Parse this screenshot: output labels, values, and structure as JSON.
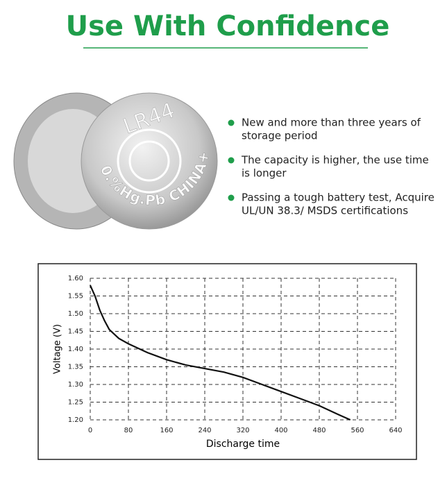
{
  "title": "Use With Confidence",
  "battery_text": {
    "model": "LR44",
    "marking": "0.%Hg.Pb CHINA+"
  },
  "bullets": [
    [
      "New and more than three years of",
      "storage period"
    ],
    [
      "The capacity is higher, the use time",
      "is longer"
    ],
    [
      "Passing a tough battery test, Acquire",
      "UL/UN 38.3/ MSDS certifications"
    ]
  ],
  "chart_data": {
    "type": "line",
    "x_label": "Discharge time",
    "y_label": "Voltage (V)",
    "x": [
      0,
      10,
      20,
      30,
      40,
      60,
      80,
      120,
      160,
      200,
      240,
      280,
      320,
      360,
      400,
      440,
      480,
      520,
      545
    ],
    "values": [
      1.58,
      1.55,
      1.51,
      1.48,
      1.455,
      1.43,
      1.415,
      1.39,
      1.37,
      1.355,
      1.345,
      1.335,
      1.32,
      1.3,
      1.28,
      1.26,
      1.24,
      1.215,
      1.2
    ],
    "color": "#111111",
    "xlim": [
      0,
      640
    ],
    "xticks": [
      0,
      80,
      160,
      240,
      320,
      400,
      480,
      560,
      640
    ],
    "ylim": [
      1.2,
      1.6
    ],
    "yticks": [
      {
        "value": 1.2,
        "label": "1.20"
      },
      1.25,
      {
        "value": 1.3,
        "label": "1.30"
      },
      1.35,
      {
        "value": 1.4,
        "label": "1.40"
      },
      1.45,
      {
        "value": 1.5,
        "label": "1.50"
      },
      1.55,
      {
        "value": 1.6,
        "label": "1.60"
      }
    ],
    "grid": true
  }
}
